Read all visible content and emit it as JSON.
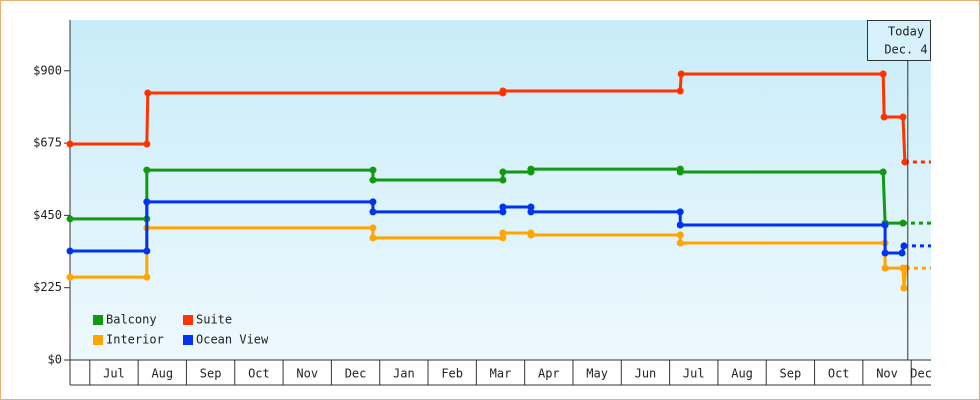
{
  "chart_data": {
    "type": "step-line",
    "categories": [
      "Jul",
      "Aug",
      "Sep",
      "Oct",
      "Nov",
      "Dec",
      "Jan",
      "Feb",
      "Mar",
      "Apr",
      "May",
      "Jun",
      "Jul",
      "Aug",
      "Sep",
      "Oct",
      "Nov",
      "Dec"
    ],
    "xlim": [
      -0.41,
      17.41
    ],
    "ylim": [
      0,
      1058
    ],
    "yticks": [
      {
        "value": 0,
        "label": "$0"
      },
      {
        "value": 225,
        "label": "$225"
      },
      {
        "value": 450,
        "label": "$450"
      },
      {
        "value": 675,
        "label": "$675"
      },
      {
        "value": 900,
        "label": "$900"
      }
    ],
    "annotation": {
      "x": 16.93,
      "lines": [
        "Today",
        "Dec. 4"
      ]
    },
    "series": [
      {
        "name": "Balcony",
        "color": "#119911",
        "x": [
          -0.41,
          1.18,
          1.18,
          5.86,
          5.86,
          8.55,
          8.55,
          9.13,
          9.13,
          12.22,
          12.22,
          16.42,
          16.46,
          16.83
        ],
        "values": [
          439,
          439,
          591,
          591,
          560,
          560,
          585,
          585,
          594,
          594,
          585,
          585,
          426,
          426
        ]
      },
      {
        "name": "Suite",
        "color": "#ff3300",
        "x": [
          -0.41,
          1.18,
          1.2,
          8.55,
          8.55,
          12.22,
          12.24,
          16.42,
          16.44,
          16.83,
          16.87
        ],
        "values": [
          672,
          672,
          831,
          831,
          837,
          837,
          890,
          890,
          756,
          756,
          616
        ]
      },
      {
        "name": "Interior",
        "color": "#ffa500",
        "x": [
          -0.41,
          1.18,
          1.18,
          5.86,
          5.86,
          8.55,
          8.55,
          9.13,
          9.13,
          12.22,
          12.22,
          16.46,
          16.46,
          16.83,
          16.85,
          16.89
        ],
        "values": [
          258,
          258,
          411,
          411,
          380,
          380,
          395,
          395,
          389,
          389,
          364,
          364,
          286,
          286,
          224,
          286
        ]
      },
      {
        "name": "Ocean View",
        "color": "#0033ee",
        "x": [
          -0.41,
          1.18,
          1.18,
          5.86,
          5.86,
          8.55,
          8.55,
          9.13,
          9.13,
          12.22,
          12.22,
          16.46,
          16.46,
          16.81,
          16.85
        ],
        "values": [
          339,
          339,
          492,
          492,
          461,
          461,
          476,
          476,
          461,
          461,
          420,
          420,
          333,
          333,
          355
        ]
      }
    ]
  }
}
